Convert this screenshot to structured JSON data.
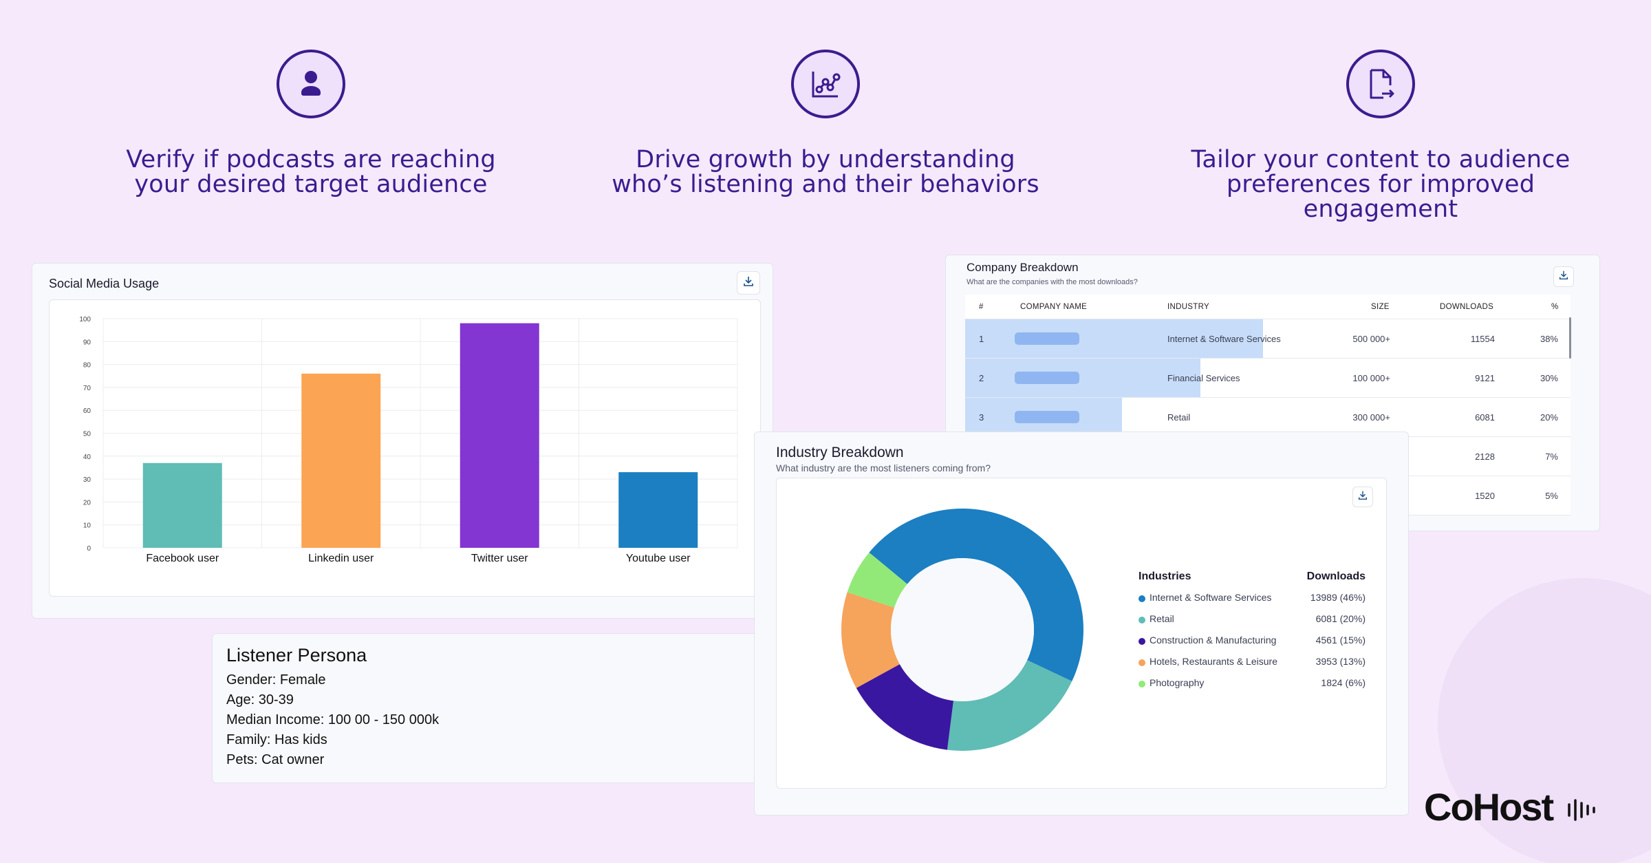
{
  "features": [
    {
      "icon": "user-icon",
      "line1": "Verify if podcasts are reaching",
      "line2": "your desired target audience"
    },
    {
      "icon": "line-chart-icon",
      "line1": "Drive growth by understanding",
      "line2": "who’s listening and their behaviors"
    },
    {
      "icon": "document-export-icon",
      "line1": "Tailor your content to audience",
      "line2": "preferences for improved engagement"
    }
  ],
  "social": {
    "title": "Social Media Usage",
    "download_icon": "download-icon"
  },
  "chart_data": {
    "type": "bar",
    "title": "Social Media Usage",
    "categories": [
      "Facebook user",
      "Linkedin user",
      "Twitter user",
      "Youtube user"
    ],
    "values": [
      37,
      76,
      98,
      33
    ],
    "colors": [
      "#5fbdb5",
      "#fba454",
      "#8336d1",
      "#1b7fc2"
    ],
    "ylim": [
      0,
      100
    ],
    "yticks": [
      0,
      10,
      20,
      30,
      40,
      50,
      60,
      70,
      80,
      90,
      100
    ],
    "grid": true
  },
  "company": {
    "title": "Company Breakdown",
    "subtitle": "What are the companies with the most downloads?",
    "headers": {
      "num": "#",
      "name": "COMPANY NAME",
      "industry": "INDUSTRY",
      "size": "SIZE",
      "downloads": "DOWNLOADS",
      "pct": "%"
    },
    "rows": [
      {
        "num": "1",
        "industry": "Internet & Software Services",
        "size": "500 000+",
        "downloads": "11554",
        "pct": "38%",
        "fill": 0.38
      },
      {
        "num": "2",
        "industry": "Financial Services",
        "size": "100 000+",
        "downloads": "9121",
        "pct": "30%",
        "fill": 0.3
      },
      {
        "num": "3",
        "industry": "Retail",
        "size": "300 000+",
        "downloads": "6081",
        "pct": "20%",
        "fill": 0.2
      },
      {
        "num": "",
        "industry": "",
        "size": "",
        "downloads": "2128",
        "pct": "7%",
        "fill": 0.07
      },
      {
        "num": "",
        "industry": "",
        "size": "",
        "downloads": "1520",
        "pct": "5%",
        "fill": 0.05
      }
    ]
  },
  "persona": {
    "title": "Listener Persona",
    "lines": [
      "Gender: Female",
      "Age: 30-39",
      "Median Income: 100 00 - 150 000k",
      "Family: Has kids",
      "Pets:  Cat owner"
    ]
  },
  "industry": {
    "title": "Industry Breakdown",
    "subtitle": "What industry are the most listeners coming from?",
    "legend_header_left": "Industries",
    "legend_header_right": "Downloads",
    "items": [
      {
        "name": "Internet & Software Services",
        "value": "13989 (46%)",
        "share": 46,
        "color": "#1b7fc2"
      },
      {
        "name": "Retail",
        "value": "6081 (20%)",
        "share": 20,
        "color": "#5fbdb5"
      },
      {
        "name": "Construction & Manufacturing",
        "value": "4561 (15%)",
        "share": 15,
        "color": "#3a17a0"
      },
      {
        "name": "Hotels, Restaurants & Leisure",
        "value": "3953 (13%)",
        "share": 13,
        "color": "#f6a35c"
      },
      {
        "name": "Photography",
        "value": "1824 (6%)",
        "share": 6,
        "color": "#93e978"
      }
    ]
  },
  "brand": {
    "logo": "CoHost"
  }
}
